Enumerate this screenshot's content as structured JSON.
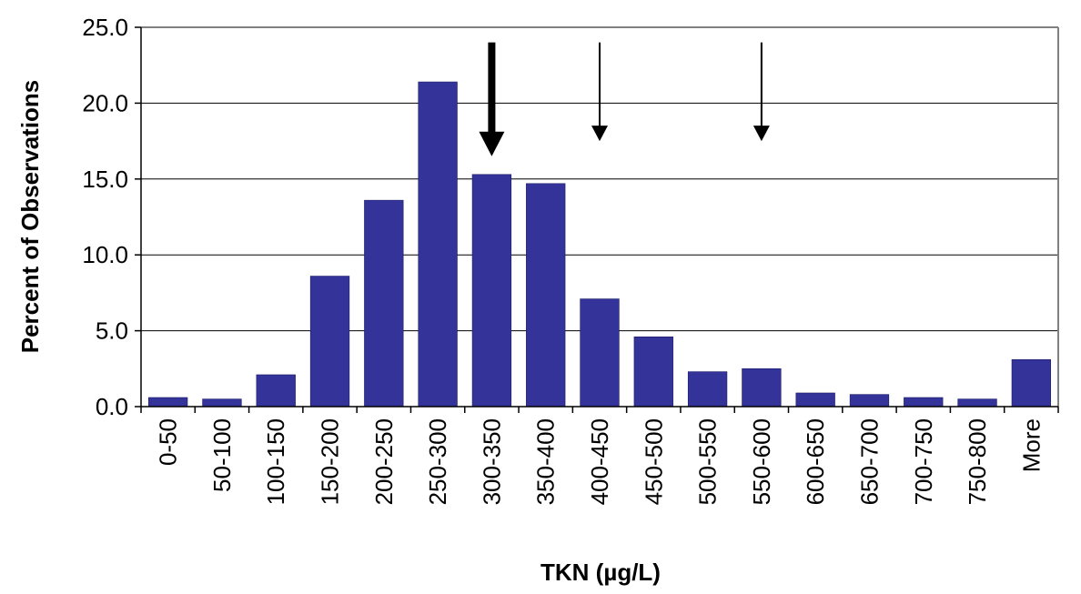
{
  "chart_data": {
    "type": "bar",
    "title": "",
    "xlabel": "TKN (µg/L)",
    "ylabel": "Percent of Observations",
    "categories": [
      "0-50",
      "50-100",
      "100-150",
      "150-200",
      "200-250",
      "250-300",
      "300-350",
      "350-400",
      "400-450",
      "450-500",
      "500-550",
      "550-600",
      "600-650",
      "650-700",
      "700-750",
      "750-800",
      "More"
    ],
    "values": [
      0.6,
      0.5,
      2.1,
      8.6,
      13.6,
      21.4,
      15.3,
      14.7,
      7.1,
      4.6,
      2.3,
      2.5,
      0.9,
      0.8,
      0.6,
      0.5,
      3.1
    ],
    "ylim": [
      0,
      25
    ],
    "yticks": [
      "0.0",
      "5.0",
      "10.0",
      "15.0",
      "20.0",
      "25.0"
    ],
    "grid": "horizontal",
    "bar_color": "#333399",
    "annotations": [
      {
        "type": "arrow",
        "category": "300-350",
        "style": "bold",
        "ytop": 24.0,
        "ybottom": 16.5
      },
      {
        "type": "arrow",
        "category": "400-450",
        "style": "thin",
        "ytop": 24.0,
        "ybottom": 17.5
      },
      {
        "type": "arrow",
        "category": "550-600",
        "style": "thin",
        "ytop": 24.0,
        "ybottom": 17.5
      }
    ]
  }
}
